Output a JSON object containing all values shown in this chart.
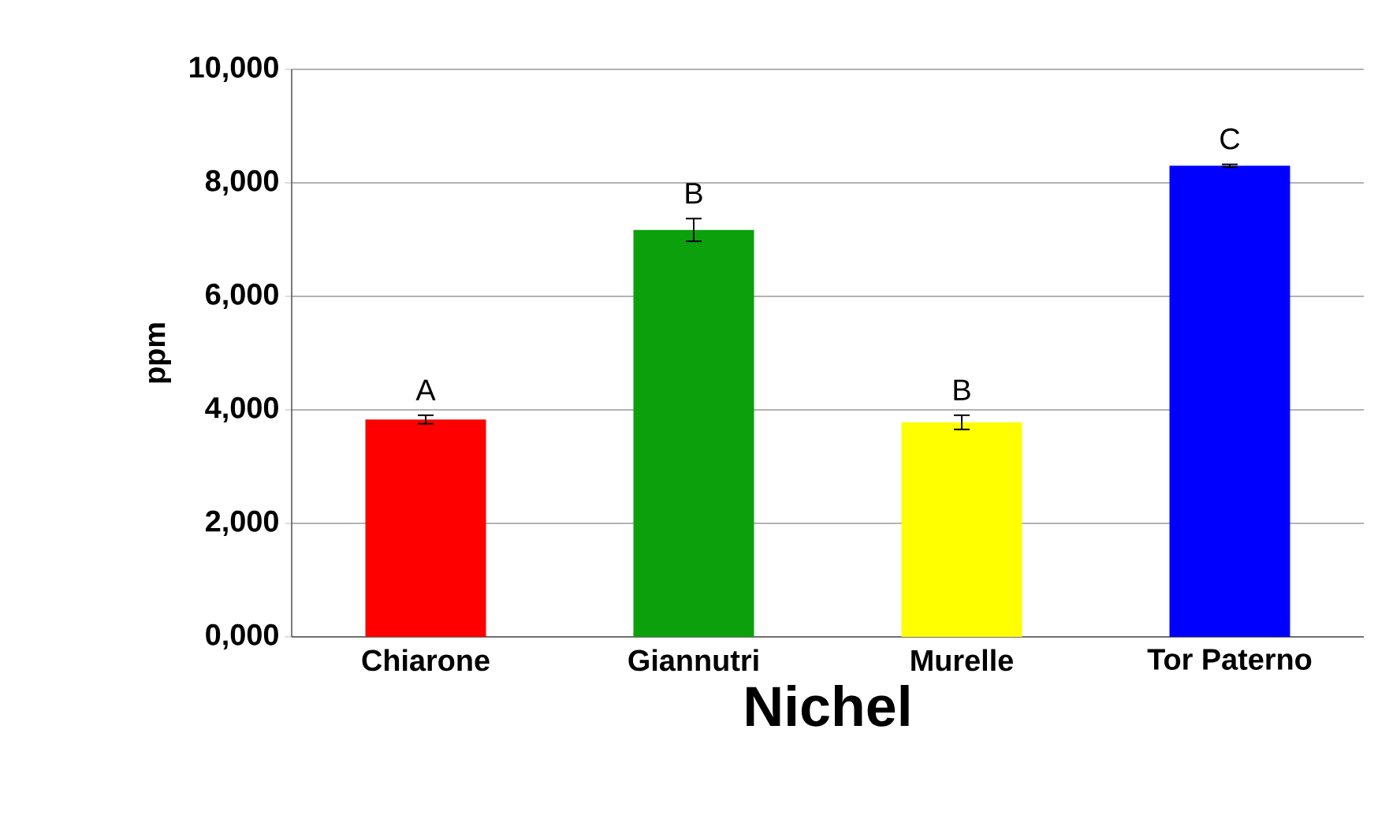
{
  "chart_data": {
    "type": "bar",
    "xlabel": "Nichel",
    "ylabel": "ppm",
    "categories": [
      "Chiarone",
      "Giannutri",
      "Murelle",
      "Tor Paterno"
    ],
    "values": [
      3830,
      7170,
      3780,
      8300
    ],
    "errors": [
      75,
      200,
      125,
      25
    ],
    "colors": [
      "#ff0000",
      "#0ca00c",
      "#ffff00",
      "#0000ff"
    ],
    "ylim": [
      0,
      10000
    ],
    "yticks": [
      {
        "value": 0,
        "label": "0,000"
      },
      {
        "value": 2000,
        "label": "2,000"
      },
      {
        "value": 4000,
        "label": "4,000"
      },
      {
        "value": 6000,
        "label": "6,000"
      },
      {
        "value": 8000,
        "label": "8,000"
      },
      {
        "value": 10000,
        "label": "10,000"
      }
    ],
    "grid": "y",
    "annotations": [
      "A",
      "B",
      "B",
      "C"
    ]
  }
}
